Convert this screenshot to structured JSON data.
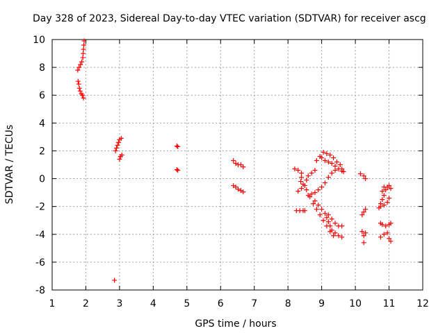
{
  "chart_data": {
    "type": "scatter",
    "title": "Day 328 of 2023, Sidereal Day-to-day VTEC variation (SDTVAR) for receiver ascg",
    "xlabel": "GPS time / hours",
    "ylabel": "SDTVAR / TECUs",
    "xlim": [
      1,
      12
    ],
    "ylim": [
      -8,
      10
    ],
    "xticks": [
      "1",
      "2",
      "3",
      "4",
      "5",
      "6",
      "7",
      "8",
      "9",
      "10",
      "11",
      "12"
    ],
    "yticks": [
      "-8",
      "-6",
      "-4",
      "-2",
      "0",
      "2",
      "4",
      "6",
      "8",
      "10"
    ],
    "grid": true,
    "marker": "+",
    "marker_color": "#ff0000",
    "series": [
      {
        "name": "SDTVAR",
        "points": [
          [
            1.95,
            9.9
          ],
          [
            1.94,
            9.6
          ],
          [
            1.93,
            9.3
          ],
          [
            1.92,
            9.0
          ],
          [
            1.91,
            8.7
          ],
          [
            1.88,
            8.4
          ],
          [
            1.84,
            8.2
          ],
          [
            1.8,
            8.0
          ],
          [
            1.76,
            7.8
          ],
          [
            1.77,
            7.0
          ],
          [
            1.79,
            6.8
          ],
          [
            1.81,
            6.5
          ],
          [
            1.83,
            6.3
          ],
          [
            1.87,
            6.1
          ],
          [
            1.9,
            6.0
          ],
          [
            1.93,
            5.8
          ],
          [
            2.85,
            -7.3
          ],
          [
            2.88,
            2.0
          ],
          [
            2.91,
            2.2
          ],
          [
            2.94,
            2.4
          ],
          [
            2.97,
            2.6
          ],
          [
            3.0,
            2.8
          ],
          [
            3.05,
            2.9
          ],
          [
            3.0,
            1.4
          ],
          [
            3.03,
            1.6
          ],
          [
            3.07,
            1.7
          ],
          [
            4.7,
            2.35
          ],
          [
            4.73,
            2.3
          ],
          [
            4.7,
            0.65
          ],
          [
            4.73,
            0.6
          ],
          [
            6.38,
            1.3
          ],
          [
            6.45,
            1.1
          ],
          [
            6.52,
            1.0
          ],
          [
            6.6,
            1.0
          ],
          [
            6.67,
            0.85
          ],
          [
            6.38,
            -0.5
          ],
          [
            6.45,
            -0.6
          ],
          [
            6.52,
            -0.75
          ],
          [
            6.6,
            -0.85
          ],
          [
            6.67,
            -0.95
          ],
          [
            8.2,
            0.7
          ],
          [
            8.3,
            0.6
          ],
          [
            8.4,
            0.4
          ],
          [
            8.4,
            0.1
          ],
          [
            8.38,
            -0.2
          ],
          [
            8.25,
            -2.3
          ],
          [
            8.35,
            -2.3
          ],
          [
            8.45,
            -2.3
          ],
          [
            8.5,
            -2.3
          ],
          [
            8.3,
            -0.9
          ],
          [
            8.4,
            -0.7
          ],
          [
            8.5,
            -0.5
          ],
          [
            8.55,
            -0.1
          ],
          [
            8.6,
            0.2
          ],
          [
            8.7,
            0.4
          ],
          [
            8.8,
            0.6
          ],
          [
            8.6,
            -1.2
          ],
          [
            8.7,
            -1.1
          ],
          [
            8.8,
            -1.0
          ],
          [
            8.9,
            -0.8
          ],
          [
            9.0,
            -0.6
          ],
          [
            9.1,
            -0.3
          ],
          [
            9.2,
            0.1
          ],
          [
            9.3,
            0.4
          ],
          [
            9.4,
            0.6
          ],
          [
            8.85,
            1.3
          ],
          [
            8.95,
            1.6
          ],
          [
            9.05,
            1.9
          ],
          [
            9.15,
            1.8
          ],
          [
            9.25,
            1.7
          ],
          [
            9.35,
            1.5
          ],
          [
            9.45,
            1.2
          ],
          [
            9.55,
            1.0
          ],
          [
            9.6,
            0.7
          ],
          [
            9.65,
            0.5
          ],
          [
            9.0,
            1.5
          ],
          [
            9.1,
            1.3
          ],
          [
            9.2,
            1.2
          ],
          [
            9.3,
            1.1
          ],
          [
            9.4,
            0.9
          ],
          [
            9.5,
            0.7
          ],
          [
            9.6,
            0.55
          ],
          [
            8.8,
            -1.6
          ],
          [
            8.9,
            -1.9
          ],
          [
            9.0,
            -2.2
          ],
          [
            9.1,
            -2.5
          ],
          [
            9.15,
            -2.8
          ],
          [
            9.2,
            -3.1
          ],
          [
            9.25,
            -3.4
          ],
          [
            9.3,
            -3.7
          ],
          [
            9.4,
            -3.9
          ],
          [
            9.5,
            -4.1
          ],
          [
            9.6,
            -4.2
          ],
          [
            9.2,
            -2.6
          ],
          [
            9.3,
            -2.9
          ],
          [
            9.4,
            -3.2
          ],
          [
            9.5,
            -3.4
          ],
          [
            9.6,
            -3.4
          ],
          [
            8.45,
            -0.4
          ],
          [
            8.55,
            -0.8
          ],
          [
            8.65,
            -1.3
          ],
          [
            8.75,
            -1.8
          ],
          [
            8.85,
            -2.2
          ],
          [
            8.95,
            -2.6
          ],
          [
            9.05,
            -3.0
          ],
          [
            9.15,
            -3.4
          ],
          [
            9.25,
            -3.8
          ],
          [
            9.35,
            -4.1
          ],
          [
            10.15,
            0.35
          ],
          [
            10.25,
            0.2
          ],
          [
            10.3,
            0.0
          ],
          [
            10.2,
            -2.6
          ],
          [
            10.25,
            -2.4
          ],
          [
            10.3,
            -2.2
          ],
          [
            10.2,
            -3.8
          ],
          [
            10.25,
            -4.1
          ],
          [
            10.3,
            -3.9
          ],
          [
            10.25,
            -4.6
          ],
          [
            10.7,
            -2.1
          ],
          [
            10.75,
            -1.8
          ],
          [
            10.8,
            -1.5
          ],
          [
            10.85,
            -1.2
          ],
          [
            10.9,
            -0.8
          ],
          [
            10.95,
            -0.6
          ],
          [
            11.0,
            -0.5
          ],
          [
            11.05,
            -0.7
          ],
          [
            10.8,
            -0.9
          ],
          [
            10.85,
            -0.6
          ],
          [
            10.75,
            -2.0
          ],
          [
            10.85,
            -1.9
          ],
          [
            10.95,
            -1.7
          ],
          [
            11.0,
            -1.4
          ],
          [
            10.75,
            -3.2
          ],
          [
            10.8,
            -3.3
          ],
          [
            10.9,
            -3.4
          ],
          [
            11.0,
            -3.3
          ],
          [
            11.05,
            -3.2
          ],
          [
            10.75,
            -4.2
          ],
          [
            10.85,
            -4.0
          ],
          [
            10.95,
            -3.9
          ],
          [
            11.0,
            -4.3
          ],
          [
            11.05,
            -4.5
          ]
        ]
      }
    ]
  }
}
